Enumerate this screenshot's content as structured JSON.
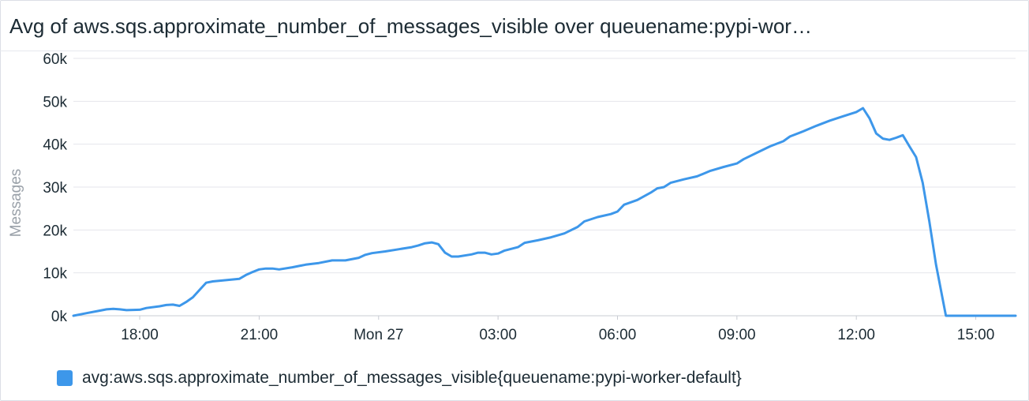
{
  "title": "Avg of aws.sqs.approximate_number_of_messages_visible over queuename:pypi-wor…",
  "colors": {
    "series": "#3d97ea",
    "grid": "#e4e6eb",
    "axis_text": "#1c2b34",
    "ylabel": "#9aa1a9"
  },
  "chart_data": {
    "type": "line",
    "title": "Avg of aws.sqs.approximate_number_of_messages_visible over queuename:pypi-wor…",
    "xlabel": "",
    "ylabel": "Messages",
    "ylim": [
      0,
      60000
    ],
    "xlim": [
      "2025-01-26T16:20",
      "2025-01-27T16:00"
    ],
    "y_ticks": [
      0,
      10000,
      20000,
      30000,
      40000,
      50000,
      60000
    ],
    "y_tick_labels": [
      "0k",
      "10k",
      "20k",
      "30k",
      "40k",
      "50k",
      "60k"
    ],
    "x_ticks": [
      "2025-01-26T18:00",
      "2025-01-26T21:00",
      "2025-01-27T00:00",
      "2025-01-27T03:00",
      "2025-01-27T06:00",
      "2025-01-27T09:00",
      "2025-01-27T12:00",
      "2025-01-27T15:00"
    ],
    "x_tick_labels": [
      "18:00",
      "21:00",
      "Mon 27",
      "03:00",
      "06:00",
      "09:00",
      "12:00",
      "15:00"
    ],
    "grid": true,
    "legend_position": "bottom-left",
    "series": [
      {
        "name": "avg:aws.sqs.approximate_number_of_messages_visible{queuename:pypi-worker-default}",
        "points": [
          [
            "2025-01-26T16:20",
            0
          ],
          [
            "2025-01-26T16:40",
            600
          ],
          [
            "2025-01-26T17:00",
            1200
          ],
          [
            "2025-01-26T17:10",
            1500
          ],
          [
            "2025-01-26T17:20",
            1600
          ],
          [
            "2025-01-26T17:30",
            1500
          ],
          [
            "2025-01-26T17:40",
            1300
          ],
          [
            "2025-01-26T18:00",
            1400
          ],
          [
            "2025-01-26T18:10",
            1800
          ],
          [
            "2025-01-26T18:30",
            2200
          ],
          [
            "2025-01-26T18:40",
            2500
          ],
          [
            "2025-01-26T18:50",
            2600
          ],
          [
            "2025-01-26T19:00",
            2300
          ],
          [
            "2025-01-26T19:10",
            3200
          ],
          [
            "2025-01-26T19:20",
            4300
          ],
          [
            "2025-01-26T19:30",
            6000
          ],
          [
            "2025-01-26T19:40",
            7700
          ],
          [
            "2025-01-26T19:50",
            8000
          ],
          [
            "2025-01-26T20:10",
            8300
          ],
          [
            "2025-01-26T20:30",
            8600
          ],
          [
            "2025-01-26T20:40",
            9500
          ],
          [
            "2025-01-26T20:50",
            10200
          ],
          [
            "2025-01-26T21:00",
            10800
          ],
          [
            "2025-01-26T21:10",
            11000
          ],
          [
            "2025-01-26T21:20",
            11000
          ],
          [
            "2025-01-26T21:30",
            10800
          ],
          [
            "2025-01-26T21:50",
            11300
          ],
          [
            "2025-01-26T22:10",
            11900
          ],
          [
            "2025-01-26T22:30",
            12300
          ],
          [
            "2025-01-26T22:50",
            12900
          ],
          [
            "2025-01-26T23:10",
            12900
          ],
          [
            "2025-01-26T23:30",
            13500
          ],
          [
            "2025-01-26T23:40",
            14200
          ],
          [
            "2025-01-26T23:50",
            14600
          ],
          [
            "2025-01-27T00:10",
            15000
          ],
          [
            "2025-01-27T00:30",
            15500
          ],
          [
            "2025-01-27T00:50",
            16000
          ],
          [
            "2025-01-27T01:00",
            16400
          ],
          [
            "2025-01-27T01:10",
            16900
          ],
          [
            "2025-01-27T01:20",
            17100
          ],
          [
            "2025-01-27T01:30",
            16700
          ],
          [
            "2025-01-27T01:40",
            14700
          ],
          [
            "2025-01-27T01:50",
            13800
          ],
          [
            "2025-01-27T02:00",
            13800
          ],
          [
            "2025-01-27T02:20",
            14300
          ],
          [
            "2025-01-27T02:30",
            14700
          ],
          [
            "2025-01-27T02:40",
            14700
          ],
          [
            "2025-01-27T02:50",
            14300
          ],
          [
            "2025-01-27T03:00",
            14500
          ],
          [
            "2025-01-27T03:10",
            15200
          ],
          [
            "2025-01-27T03:30",
            16000
          ],
          [
            "2025-01-27T03:40",
            17000
          ],
          [
            "2025-01-27T04:00",
            17600
          ],
          [
            "2025-01-27T04:20",
            18300
          ],
          [
            "2025-01-27T04:40",
            19200
          ],
          [
            "2025-01-27T05:00",
            20700
          ],
          [
            "2025-01-27T05:10",
            22000
          ],
          [
            "2025-01-27T05:30",
            23000
          ],
          [
            "2025-01-27T05:50",
            23700
          ],
          [
            "2025-01-27T06:00",
            24300
          ],
          [
            "2025-01-27T06:10",
            25900
          ],
          [
            "2025-01-27T06:30",
            27000
          ],
          [
            "2025-01-27T06:50",
            28700
          ],
          [
            "2025-01-27T07:00",
            29700
          ],
          [
            "2025-01-27T07:10",
            30000
          ],
          [
            "2025-01-27T07:20",
            31000
          ],
          [
            "2025-01-27T07:40",
            31800
          ],
          [
            "2025-01-27T08:00",
            32500
          ],
          [
            "2025-01-27T08:20",
            33800
          ],
          [
            "2025-01-27T08:40",
            34700
          ],
          [
            "2025-01-27T09:00",
            35500
          ],
          [
            "2025-01-27T09:10",
            36500
          ],
          [
            "2025-01-27T09:30",
            38000
          ],
          [
            "2025-01-27T09:50",
            39500
          ],
          [
            "2025-01-27T10:10",
            40700
          ],
          [
            "2025-01-27T10:20",
            41800
          ],
          [
            "2025-01-27T10:40",
            43000
          ],
          [
            "2025-01-27T11:00",
            44300
          ],
          [
            "2025-01-27T11:20",
            45500
          ],
          [
            "2025-01-27T11:40",
            46500
          ],
          [
            "2025-01-27T12:00",
            47500
          ],
          [
            "2025-01-27T12:10",
            48400
          ],
          [
            "2025-01-27T12:20",
            46000
          ],
          [
            "2025-01-27T12:30",
            42500
          ],
          [
            "2025-01-27T12:40",
            41300
          ],
          [
            "2025-01-27T12:50",
            41000
          ],
          [
            "2025-01-27T13:00",
            41500
          ],
          [
            "2025-01-27T13:10",
            42100
          ],
          [
            "2025-01-27T13:20",
            39500
          ],
          [
            "2025-01-27T13:30",
            37000
          ],
          [
            "2025-01-27T13:40",
            31000
          ],
          [
            "2025-01-27T13:50",
            22000
          ],
          [
            "2025-01-27T14:00",
            12000
          ],
          [
            "2025-01-27T14:10",
            4000
          ],
          [
            "2025-01-27T14:15",
            0
          ],
          [
            "2025-01-27T16:00",
            0
          ]
        ]
      }
    ]
  }
}
